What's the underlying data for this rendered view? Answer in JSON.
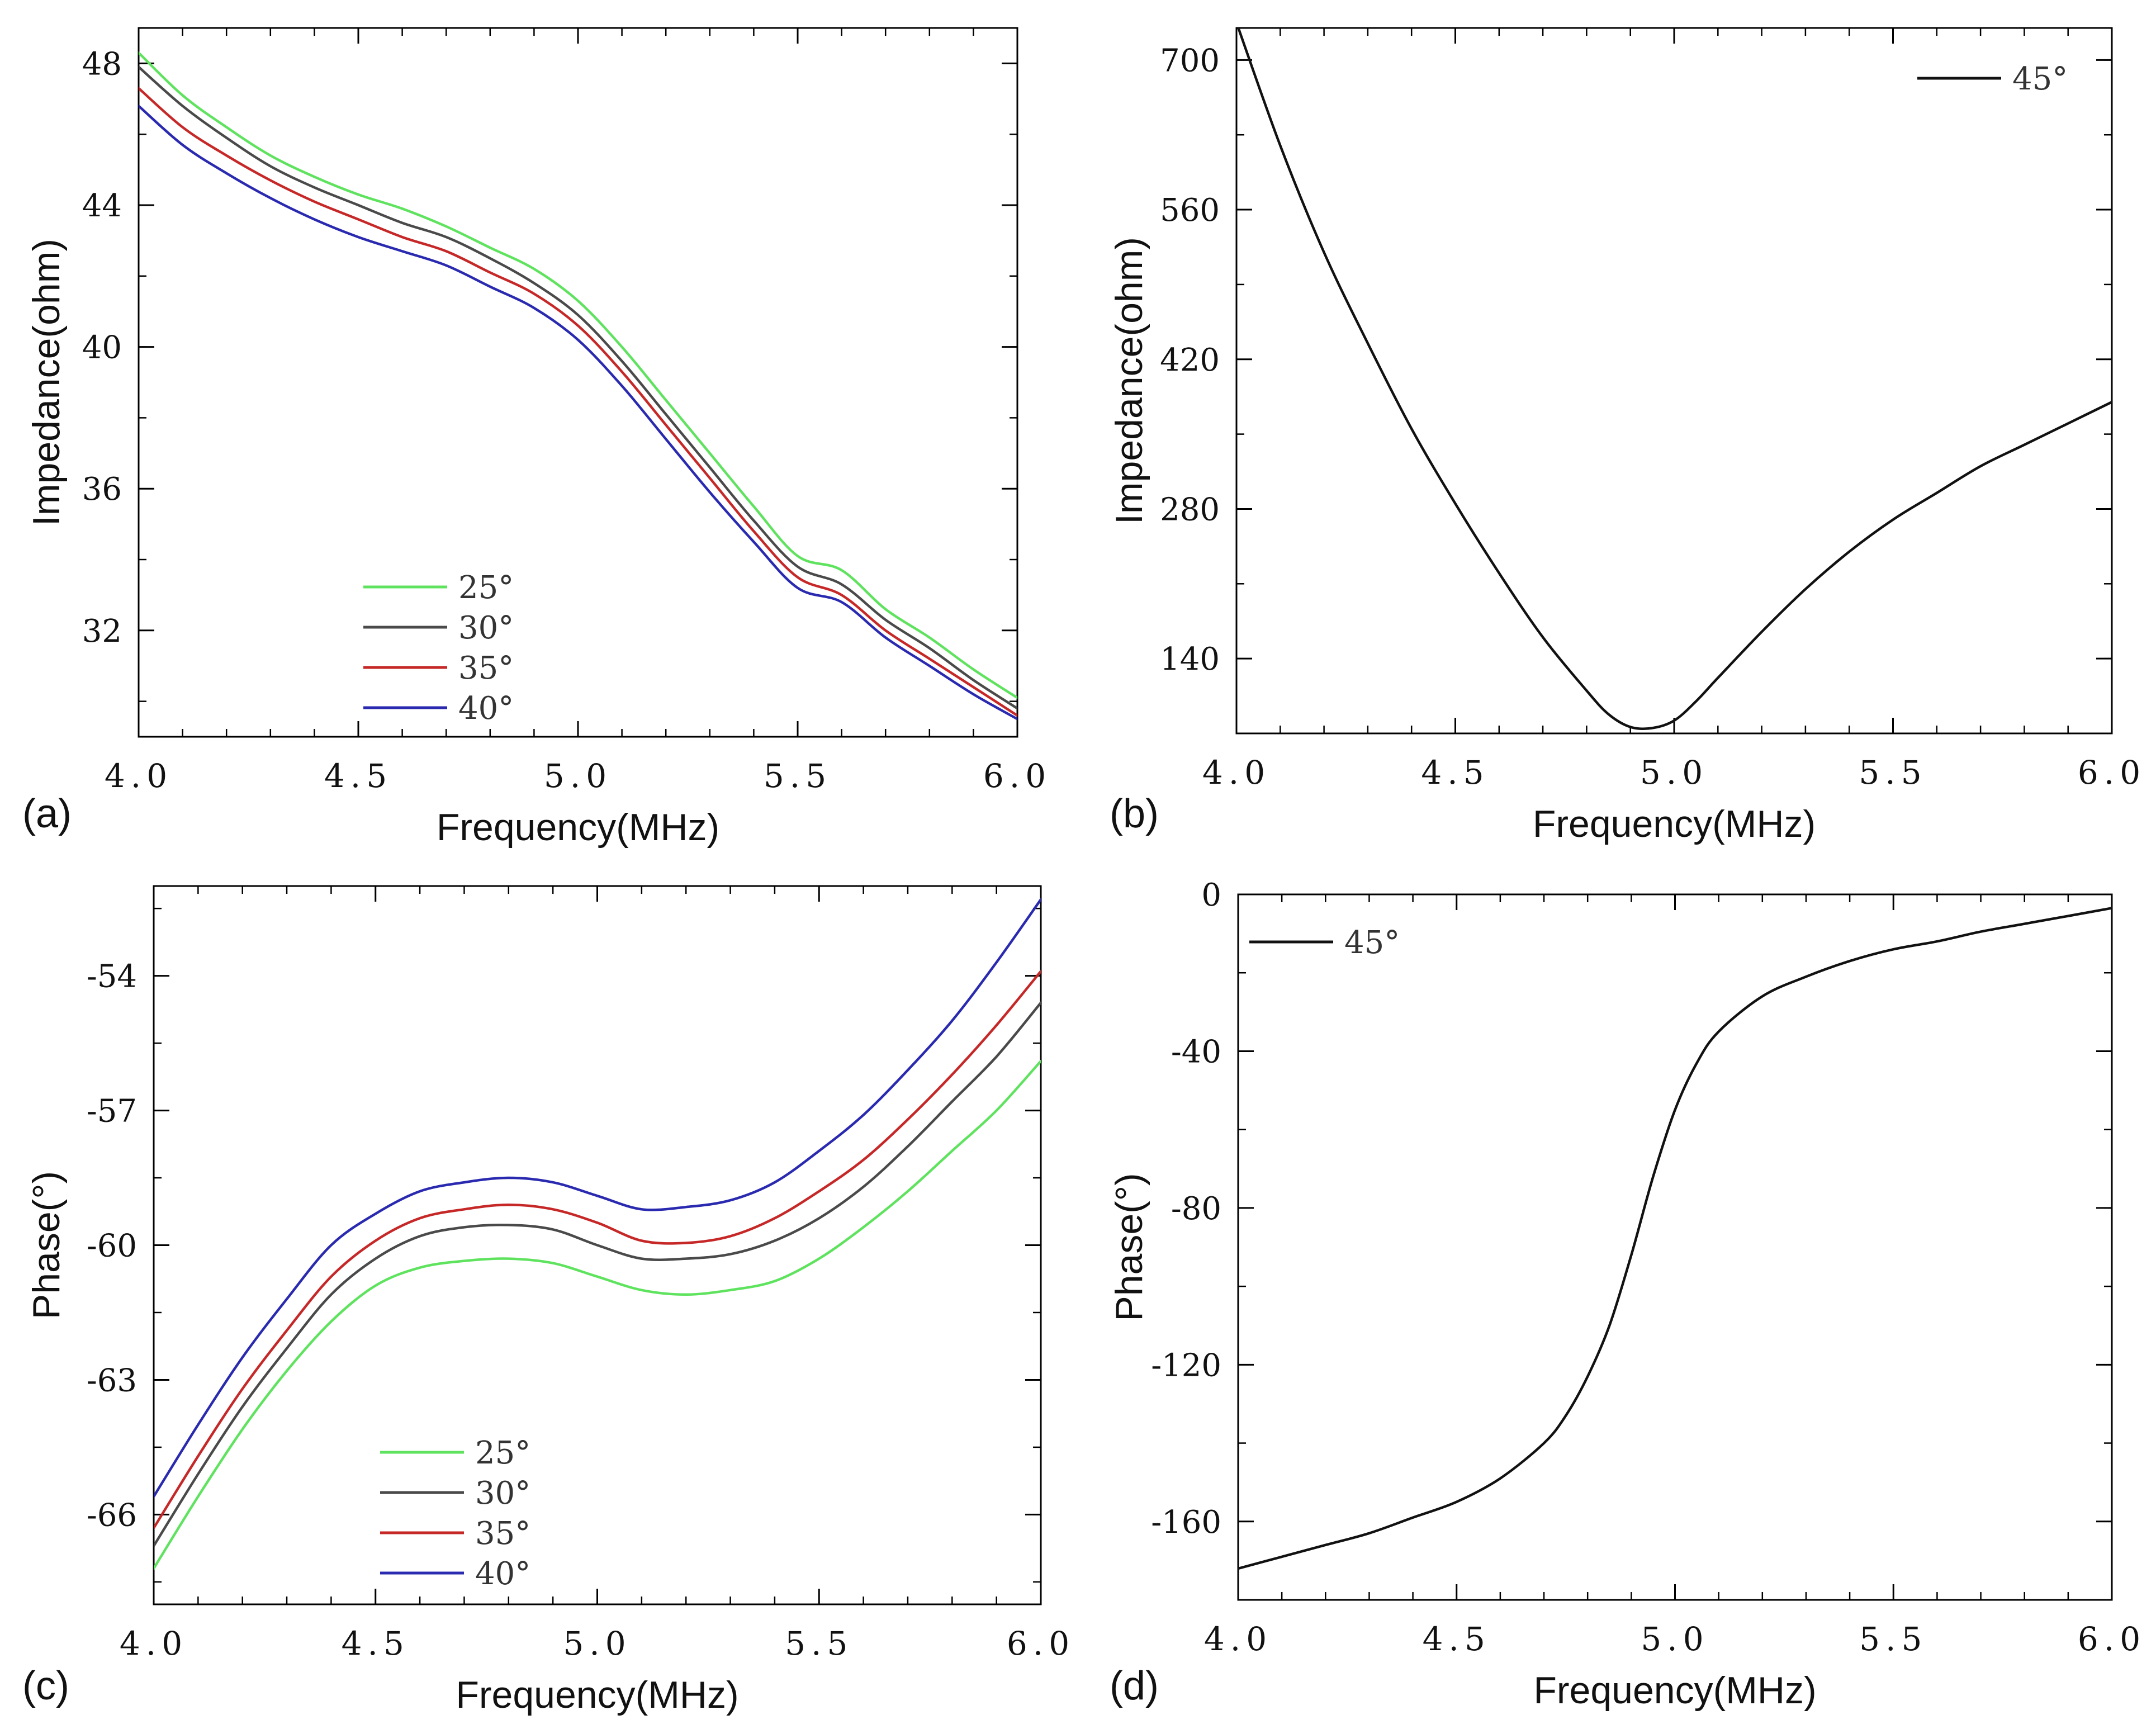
{
  "figure": {
    "panels": [
      "(a)",
      "(b)",
      "(c)",
      "(d)"
    ]
  },
  "colors": {
    "25°": "#5fe35f",
    "30°": "#4a4a4a",
    "35°": "#c62828",
    "40°": "#2a2ab0",
    "45°": "#111111"
  },
  "chart_data": [
    {
      "id": "a",
      "panel_label": "(a)",
      "type": "line",
      "xlabel": "Frequency(MHz)",
      "ylabel": "Impedance(ohm)",
      "xlim": [
        4.0,
        6.0
      ],
      "ylim": [
        29.0,
        49.0
      ],
      "xticks": [
        4.0,
        4.5,
        5.0,
        5.5,
        6.0
      ],
      "xtick_labels": [
        "4.0",
        "4.5",
        "5.0",
        "5.5",
        "6.0"
      ],
      "yticks": [
        32,
        36,
        40,
        44,
        48
      ],
      "ytick_labels": [
        "32",
        "36",
        "40",
        "44",
        "48"
      ],
      "legend": "bottom-left",
      "x": [
        4.0,
        4.1,
        4.2,
        4.3,
        4.4,
        4.5,
        4.6,
        4.7,
        4.8,
        4.9,
        5.0,
        5.1,
        5.2,
        5.3,
        5.4,
        5.5,
        5.6,
        5.7,
        5.8,
        5.9,
        6.0
      ],
      "series": [
        {
          "name": "25°",
          "values": [
            48.3,
            47.1,
            46.2,
            45.4,
            44.8,
            44.3,
            43.9,
            43.4,
            42.8,
            42.2,
            41.3,
            40.0,
            38.5,
            37.0,
            35.5,
            34.1,
            33.7,
            32.6,
            31.8,
            30.9,
            30.1
          ]
        },
        {
          "name": "30°",
          "values": [
            47.9,
            46.8,
            45.9,
            45.1,
            44.5,
            44.0,
            43.5,
            43.1,
            42.5,
            41.8,
            40.9,
            39.6,
            38.1,
            36.6,
            35.1,
            33.8,
            33.3,
            32.3,
            31.5,
            30.6,
            29.8
          ]
        },
        {
          "name": "35°",
          "values": [
            47.3,
            46.2,
            45.4,
            44.7,
            44.1,
            43.6,
            43.1,
            42.7,
            42.1,
            41.5,
            40.6,
            39.3,
            37.8,
            36.3,
            34.8,
            33.5,
            33.0,
            32.0,
            31.2,
            30.4,
            29.6
          ]
        },
        {
          "name": "40°",
          "values": [
            46.8,
            45.7,
            44.9,
            44.2,
            43.6,
            43.1,
            42.7,
            42.3,
            41.7,
            41.1,
            40.2,
            38.9,
            37.4,
            35.9,
            34.5,
            33.2,
            32.8,
            31.8,
            31.0,
            30.2,
            29.5
          ]
        }
      ]
    },
    {
      "id": "b",
      "panel_label": "(b)",
      "type": "line",
      "xlabel": "Frequency(MHz)",
      "ylabel": "Impedance(ohm)",
      "xlim": [
        4.0,
        6.0
      ],
      "ylim": [
        70,
        730
      ],
      "xticks": [
        4.0,
        4.5,
        5.0,
        5.5,
        6.0
      ],
      "xtick_labels": [
        "4.0",
        "4.5",
        "5.0",
        "5.5",
        "6.0"
      ],
      "yticks": [
        140,
        280,
        420,
        560,
        700
      ],
      "ytick_labels": [
        "140",
        "280",
        "420",
        "560",
        "700"
      ],
      "legend": "top-right",
      "x": [
        4.0,
        4.1,
        4.2,
        4.3,
        4.4,
        4.5,
        4.6,
        4.7,
        4.8,
        4.85,
        4.9,
        4.95,
        5.0,
        5.05,
        5.1,
        5.2,
        5.3,
        5.4,
        5.5,
        5.6,
        5.7,
        5.8,
        5.9,
        6.0
      ],
      "series": [
        {
          "name": "45°",
          "values": [
            735,
            620,
            520,
            435,
            355,
            285,
            220,
            160,
            110,
            88,
            76,
            75,
            82,
            100,
            122,
            165,
            205,
            240,
            270,
            295,
            320,
            340,
            360,
            380
          ]
        }
      ]
    },
    {
      "id": "c",
      "panel_label": "(c)",
      "type": "line",
      "xlabel": "Frequency(MHz)",
      "ylabel": "Phase(°)",
      "xlim": [
        4.0,
        6.0
      ],
      "ylim": [
        -68.0,
        -52.0
      ],
      "xticks": [
        4.0,
        4.5,
        5.0,
        5.5,
        6.0
      ],
      "xtick_labels": [
        "4.0",
        "4.5",
        "5.0",
        "5.5",
        "6.0"
      ],
      "yticks": [
        -66,
        -63,
        -60,
        -57,
        -54
      ],
      "ytick_labels": [
        "-66",
        "-63",
        "-60",
        "-57",
        "-54"
      ],
      "legend": "bottom-left",
      "x": [
        4.0,
        4.1,
        4.2,
        4.3,
        4.4,
        4.5,
        4.6,
        4.7,
        4.8,
        4.9,
        5.0,
        5.1,
        5.2,
        5.3,
        5.4,
        5.5,
        5.6,
        5.7,
        5.8,
        5.9,
        6.0
      ],
      "series": [
        {
          "name": "25°",
          "values": [
            -67.2,
            -65.6,
            -64.1,
            -62.8,
            -61.7,
            -60.9,
            -60.5,
            -60.35,
            -60.3,
            -60.4,
            -60.7,
            -61.0,
            -61.1,
            -61.0,
            -60.8,
            -60.3,
            -59.6,
            -58.8,
            -57.9,
            -57.0,
            -55.9
          ]
        },
        {
          "name": "30°",
          "values": [
            -66.7,
            -65.1,
            -63.6,
            -62.3,
            -61.1,
            -60.3,
            -59.8,
            -59.6,
            -59.55,
            -59.65,
            -60.0,
            -60.3,
            -60.3,
            -60.2,
            -59.9,
            -59.4,
            -58.7,
            -57.8,
            -56.8,
            -55.8,
            -54.6
          ]
        },
        {
          "name": "35°",
          "values": [
            -66.3,
            -64.7,
            -63.2,
            -61.9,
            -60.7,
            -59.9,
            -59.4,
            -59.2,
            -59.1,
            -59.2,
            -59.5,
            -59.9,
            -59.95,
            -59.8,
            -59.4,
            -58.8,
            -58.1,
            -57.2,
            -56.2,
            -55.1,
            -53.9
          ]
        },
        {
          "name": "40°",
          "values": [
            -65.6,
            -64.0,
            -62.5,
            -61.2,
            -60.0,
            -59.3,
            -58.8,
            -58.6,
            -58.5,
            -58.6,
            -58.9,
            -59.2,
            -59.15,
            -59.0,
            -58.6,
            -57.9,
            -57.1,
            -56.1,
            -55.0,
            -53.7,
            -52.3
          ]
        }
      ]
    },
    {
      "id": "d",
      "panel_label": "(d)",
      "type": "line",
      "xlabel": "Frequency(MHz)",
      "ylabel": "Phase(°)",
      "xlim": [
        4.0,
        6.0
      ],
      "ylim": [
        -180,
        0
      ],
      "xticks": [
        4.0,
        4.5,
        5.0,
        5.5,
        6.0
      ],
      "xtick_labels": [
        "4.0",
        "4.5",
        "5.0",
        "5.5",
        "6.0"
      ],
      "yticks": [
        -160,
        -120,
        -80,
        -40,
        0
      ],
      "ytick_labels": [
        "-160",
        "-120",
        "-80",
        "-40",
        "0"
      ],
      "legend": "top-left",
      "x": [
        4.0,
        4.1,
        4.2,
        4.3,
        4.4,
        4.5,
        4.6,
        4.7,
        4.75,
        4.8,
        4.85,
        4.9,
        4.95,
        5.0,
        5.05,
        5.1,
        5.2,
        5.3,
        5.4,
        5.5,
        5.6,
        5.7,
        5.8,
        5.9,
        6.0
      ],
      "series": [
        {
          "name": "45°",
          "values": [
            -172,
            -169,
            -166,
            -163,
            -159,
            -155,
            -149,
            -140,
            -133,
            -123,
            -110,
            -92,
            -72,
            -55,
            -43,
            -35,
            -26,
            -21,
            -17,
            -14,
            -12,
            -9.5,
            -7.5,
            -5.5,
            -3.5
          ]
        }
      ]
    }
  ]
}
